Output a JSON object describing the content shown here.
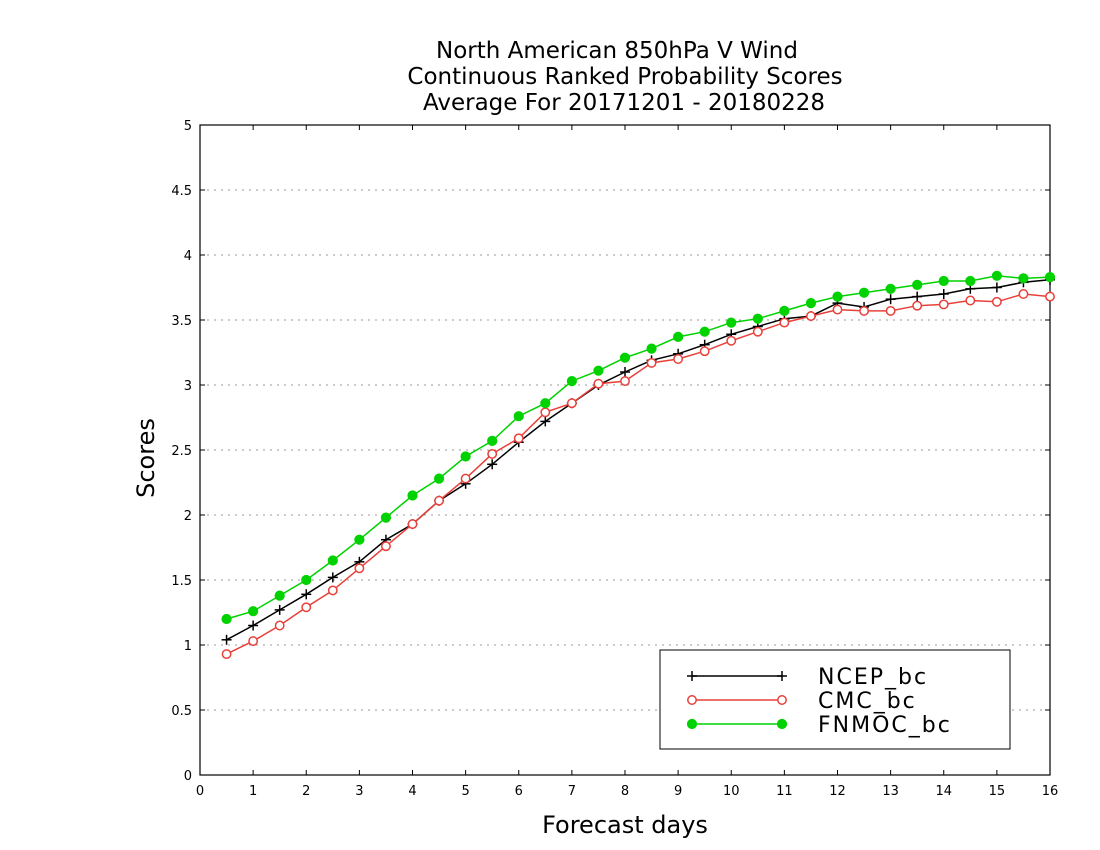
{
  "chart_data": {
    "type": "line",
    "title_lines": [
      "North American 850hPa V Wind",
      "Continuous Ranked Probability Scores",
      "Average For 20171201 - 20180228"
    ],
    "xlabel": "Forecast days",
    "ylabel": "Scores",
    "xlim": [
      0,
      16
    ],
    "ylim": [
      0,
      5
    ],
    "xticks": [
      0,
      1,
      2,
      3,
      4,
      5,
      6,
      7,
      8,
      9,
      10,
      11,
      12,
      13,
      14,
      15,
      16
    ],
    "yticks": [
      0,
      0.5,
      1,
      1.5,
      2,
      2.5,
      3,
      3.5,
      4,
      4.5,
      5
    ],
    "grid": "horizontal dotted",
    "legend_position": "bottom-right",
    "x": [
      0.5,
      1,
      1.5,
      2,
      2.5,
      3,
      3.5,
      4,
      4.5,
      5,
      5.5,
      6,
      6.5,
      7,
      7.5,
      8,
      8.5,
      9,
      9.5,
      10,
      10.5,
      11,
      11.5,
      12,
      12.5,
      13,
      13.5,
      14,
      14.5,
      15,
      15.5,
      16
    ],
    "series": [
      {
        "name": "NCEP_bc",
        "color": "#000000",
        "marker": "plus",
        "values": [
          1.04,
          1.15,
          1.27,
          1.39,
          1.52,
          1.64,
          1.81,
          1.93,
          2.11,
          2.24,
          2.39,
          2.56,
          2.72,
          2.86,
          3.0,
          3.1,
          3.19,
          3.24,
          3.31,
          3.39,
          3.45,
          3.51,
          3.53,
          3.63,
          3.6,
          3.66,
          3.68,
          3.7,
          3.74,
          3.75,
          3.79,
          3.81
        ]
      },
      {
        "name": "CMC_bc",
        "color": "#e8403a",
        "marker": "open-circle",
        "values": [
          0.93,
          1.03,
          1.15,
          1.29,
          1.42,
          1.59,
          1.76,
          1.93,
          2.11,
          2.28,
          2.47,
          2.59,
          2.79,
          2.86,
          3.01,
          3.03,
          3.17,
          3.2,
          3.26,
          3.34,
          3.41,
          3.48,
          3.53,
          3.58,
          3.57,
          3.57,
          3.61,
          3.62,
          3.65,
          3.64,
          3.7,
          3.68
        ]
      },
      {
        "name": "FNMOC_bc",
        "color": "#00d200",
        "marker": "filled-circle",
        "values": [
          1.2,
          1.26,
          1.38,
          1.5,
          1.65,
          1.81,
          1.98,
          2.15,
          2.28,
          2.45,
          2.57,
          2.76,
          2.86,
          3.03,
          3.11,
          3.21,
          3.28,
          3.37,
          3.41,
          3.48,
          3.51,
          3.57,
          3.63,
          3.68,
          3.71,
          3.74,
          3.77,
          3.8,
          3.8,
          3.84,
          3.82,
          3.83
        ]
      }
    ]
  }
}
